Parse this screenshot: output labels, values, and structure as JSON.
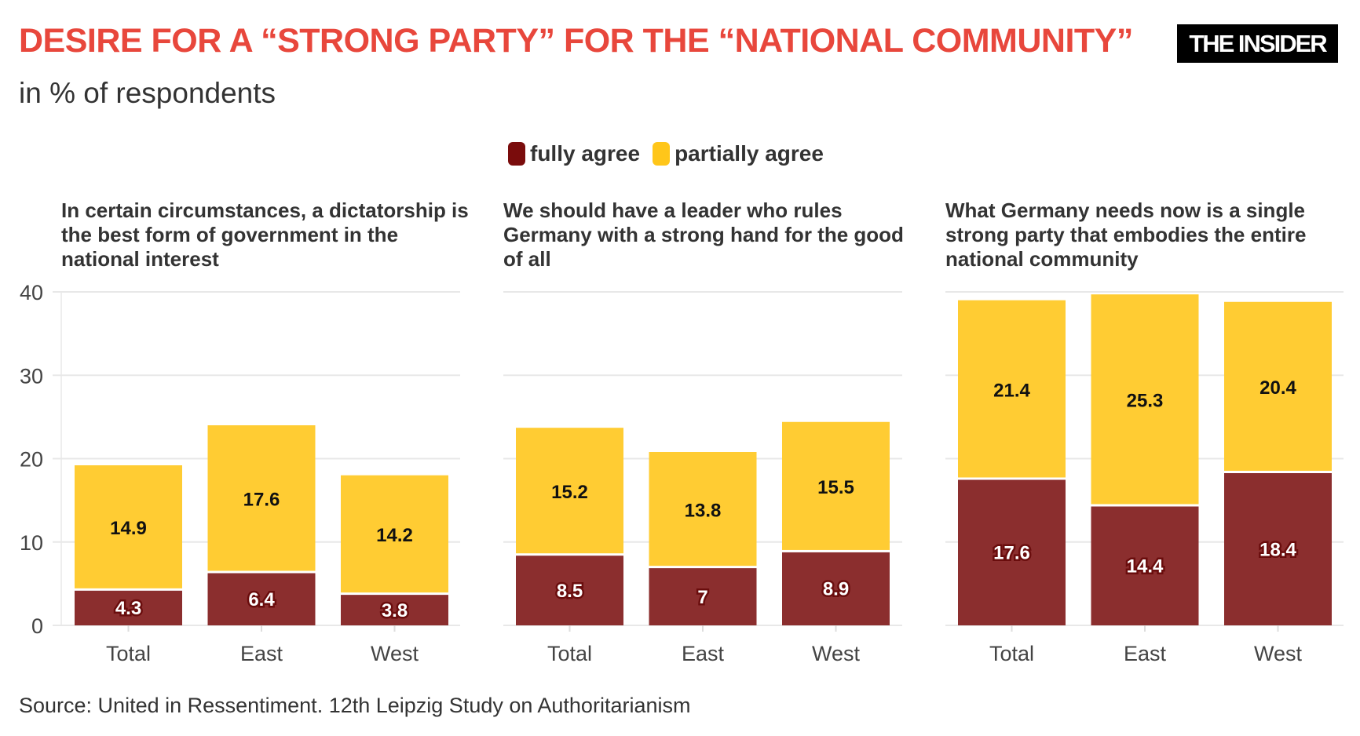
{
  "header": {
    "title": "DESIRE FOR A “STRONG PARTY” FOR THE “NATIONAL COMMUNITY”",
    "subtitle": "in % of respondents",
    "logo": "THE INSIDER"
  },
  "legend": [
    {
      "label": "fully agree",
      "color": "#8b2e2e"
    },
    {
      "label": "partially agree",
      "color": "#ffcc33"
    }
  ],
  "source": "Source: United in Ressentiment. 12th Leipzig Study on Authoritarianism",
  "chart_data": [
    {
      "type": "bar",
      "stacked": true,
      "title": "In certain circumstances, a dictatorship is the best form of government in the national interest",
      "categories": [
        "Total",
        "East",
        "West"
      ],
      "series": [
        {
          "name": "fully agree",
          "values": [
            4.3,
            6.4,
            3.8
          ]
        },
        {
          "name": "partially agree",
          "values": [
            14.9,
            17.6,
            14.2
          ]
        }
      ],
      "yticks": [
        0,
        10,
        20,
        30,
        40
      ],
      "ylim": [
        0,
        40
      ],
      "grid": true
    },
    {
      "type": "bar",
      "stacked": true,
      "title": "We should have a leader who rules Germany with a strong hand for the good of all",
      "categories": [
        "Total",
        "East",
        "West"
      ],
      "series": [
        {
          "name": "fully agree",
          "values": [
            8.5,
            7,
            8.9
          ]
        },
        {
          "name": "partially agree",
          "values": [
            15.2,
            13.8,
            15.5
          ]
        }
      ],
      "ylim": [
        0,
        40
      ],
      "grid": true
    },
    {
      "type": "bar",
      "stacked": true,
      "title": "What Germany needs now is a single strong party that embodies the entire national community",
      "categories": [
        "Total",
        "East",
        "West"
      ],
      "series": [
        {
          "name": "fully agree",
          "values": [
            17.6,
            14.4,
            18.4
          ]
        },
        {
          "name": "partially agree",
          "values": [
            21.4,
            25.3,
            20.4
          ]
        }
      ],
      "ylim": [
        0,
        40
      ],
      "grid": true
    }
  ]
}
